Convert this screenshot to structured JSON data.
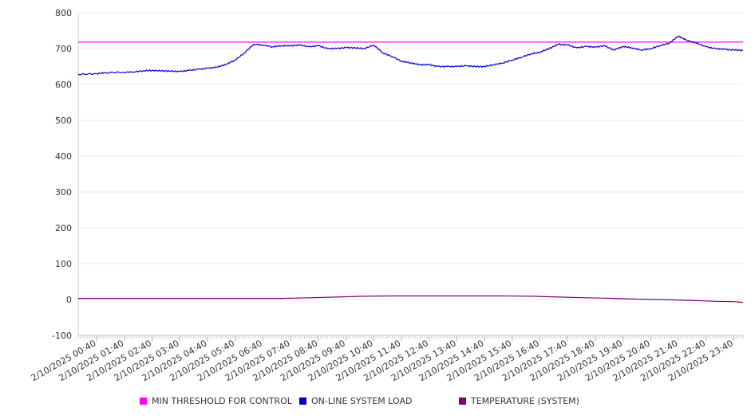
{
  "chart_data": {
    "type": "line",
    "title": "",
    "xlabel": "",
    "ylabel": "",
    "ylim": [
      -100,
      800
    ],
    "y_ticks": [
      800,
      700,
      600,
      500,
      400,
      300,
      200,
      100,
      0,
      -100
    ],
    "x_range": [
      "2/10/2025 00:00",
      "2/11/2025 00:00"
    ],
    "x_tick_labels": [
      "2/10/2025 00:40",
      "2/10/2025 01:40",
      "2/10/2025 02:40",
      "2/10/2025 03:40",
      "2/10/2025 04:40",
      "2/10/2025 05:40",
      "2/10/2025 06:40",
      "2/10/2025 07:40",
      "2/10/2025 08:40",
      "2/10/2025 09:40",
      "2/10/2025 10:40",
      "2/10/2025 11:40",
      "2/10/2025 12:40",
      "2/10/2025 13:40",
      "2/10/2025 14:40",
      "2/10/2025 15:40",
      "2/10/2025 16:40",
      "2/10/2025 17:40",
      "2/10/2025 18:40",
      "2/10/2025 19:40",
      "2/10/2025 20:40",
      "2/10/2025 21:40",
      "2/10/2025 22:40",
      "2/10/2025 23:40"
    ],
    "grid": true,
    "legend_position": "bottom",
    "series": [
      {
        "name": "MIN THRESHOLD FOR CONTROL",
        "color": "#ff00ff",
        "x": [
          "2/10/2025 00:00",
          "2/11/2025 00:00"
        ],
        "y": [
          718,
          718
        ]
      },
      {
        "name": "ON-LINE SYSTEM LOAD",
        "color": "#0000cc",
        "x": [
          "2/10/2025 00:00",
          "2/10/2025 00:40",
          "2/10/2025 01:00",
          "2/10/2025 01:40",
          "2/10/2025 02:00",
          "2/10/2025 02:20",
          "2/10/2025 02:40",
          "2/10/2025 03:00",
          "2/10/2025 03:20",
          "2/10/2025 03:40",
          "2/10/2025 04:00",
          "2/10/2025 04:20",
          "2/10/2025 04:40",
          "2/10/2025 05:00",
          "2/10/2025 05:20",
          "2/10/2025 05:40",
          "2/10/2025 06:00",
          "2/10/2025 06:20",
          "2/10/2025 06:40",
          "2/10/2025 07:00",
          "2/10/2025 07:20",
          "2/10/2025 07:40",
          "2/10/2025 08:00",
          "2/10/2025 08:20",
          "2/10/2025 08:40",
          "2/10/2025 09:00",
          "2/10/2025 09:20",
          "2/10/2025 09:40",
          "2/10/2025 10:00",
          "2/10/2025 10:20",
          "2/10/2025 10:40",
          "2/10/2025 11:00",
          "2/10/2025 11:20",
          "2/10/2025 11:40",
          "2/10/2025 12:00",
          "2/10/2025 12:20",
          "2/10/2025 12:40",
          "2/10/2025 13:00",
          "2/10/2025 13:20",
          "2/10/2025 13:40",
          "2/10/2025 14:00",
          "2/10/2025 14:20",
          "2/10/2025 14:40",
          "2/10/2025 15:00",
          "2/10/2025 15:20",
          "2/10/2025 15:40",
          "2/10/2025 16:00",
          "2/10/2025 16:20",
          "2/10/2025 16:40",
          "2/10/2025 17:00",
          "2/10/2025 17:20",
          "2/10/2025 17:40",
          "2/10/2025 18:00",
          "2/10/2025 18:20",
          "2/10/2025 18:40",
          "2/10/2025 19:00",
          "2/10/2025 19:20",
          "2/10/2025 19:40",
          "2/10/2025 20:00",
          "2/10/2025 20:20",
          "2/10/2025 20:40",
          "2/10/2025 21:00",
          "2/10/2025 21:20",
          "2/10/2025 21:40",
          "2/10/2025 22:00",
          "2/10/2025 22:20",
          "2/10/2025 22:40",
          "2/10/2025 23:00",
          "2/10/2025 23:20",
          "2/10/2025 23:40",
          "2/11/2025 00:00"
        ],
        "y": [
          628,
          630,
          633,
          634,
          635,
          638,
          639,
          638,
          637,
          636,
          639,
          642,
          645,
          648,
          656,
          668,
          688,
          712,
          710,
          705,
          708,
          708,
          710,
          705,
          708,
          700,
          700,
          703,
          702,
          700,
          710,
          688,
          678,
          665,
          660,
          655,
          655,
          650,
          650,
          650,
          652,
          650,
          650,
          655,
          660,
          668,
          676,
          685,
          690,
          700,
          712,
          710,
          702,
          706,
          704,
          708,
          696,
          706,
          702,
          696,
          700,
          708,
          715,
          735,
          722,
          715,
          705,
          700,
          698,
          696,
          695
        ]
      },
      {
        "name": "TEMPERATURE (SYSTEM)",
        "color": "#800080",
        "x": [
          "2/10/2025 00:00",
          "2/10/2025 02:00",
          "2/10/2025 04:00",
          "2/10/2025 06:00",
          "2/10/2025 07:20",
          "2/10/2025 08:20",
          "2/10/2025 09:20",
          "2/10/2025 10:20",
          "2/10/2025 11:20",
          "2/10/2025 12:20",
          "2/10/2025 13:20",
          "2/10/2025 14:20",
          "2/10/2025 15:20",
          "2/10/2025 16:20",
          "2/10/2025 17:20",
          "2/10/2025 18:20",
          "2/10/2025 19:20",
          "2/10/2025 20:20",
          "2/10/2025 21:20",
          "2/10/2025 22:20",
          "2/10/2025 23:00",
          "2/10/2025 23:40",
          "2/11/2025 00:00"
        ],
        "y": [
          3,
          3,
          3,
          3,
          3,
          5,
          7,
          9,
          10,
          10,
          10,
          10,
          10,
          9,
          7,
          5,
          3,
          1,
          -1,
          -3,
          -5,
          -6,
          -8
        ]
      }
    ]
  }
}
